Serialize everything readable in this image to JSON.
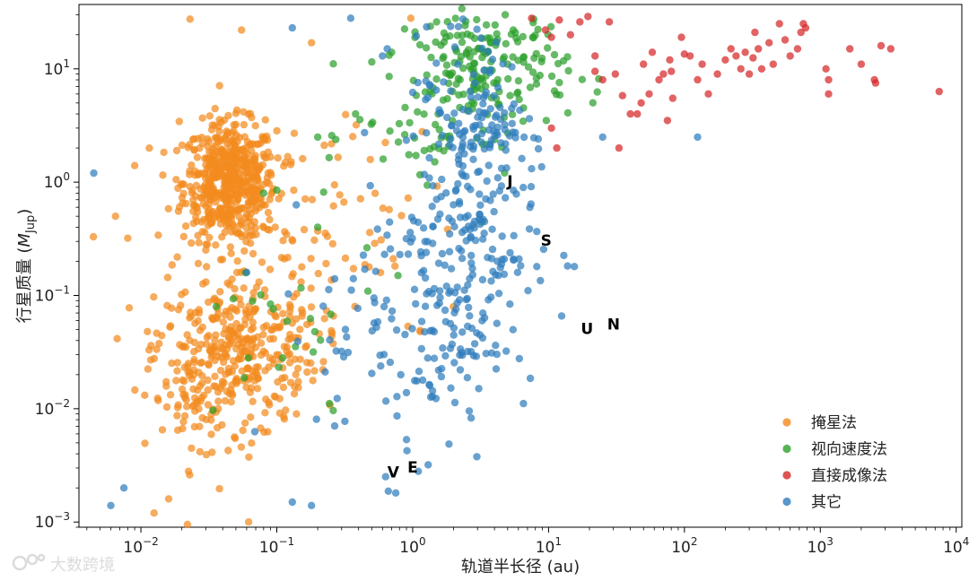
{
  "chart_data": {
    "type": "scatter",
    "xlabel": "轨道半长径 (au)",
    "ylabel": "行星质量 (M_Jup)",
    "xscale": "log",
    "yscale": "log",
    "xlim": [
      0.0035,
      11000
    ],
    "ylim": [
      0.0009,
      37
    ],
    "x_ticks": [
      {
        "value": 0.01,
        "base": "10",
        "exp": "−2"
      },
      {
        "value": 0.1,
        "base": "10",
        "exp": "−1"
      },
      {
        "value": 1,
        "base": "10",
        "exp": "0"
      },
      {
        "value": 10,
        "base": "10",
        "exp": "1"
      },
      {
        "value": 100,
        "base": "10",
        "exp": "2"
      },
      {
        "value": 1000,
        "base": "10",
        "exp": "3"
      },
      {
        "value": 10000,
        "base": "10",
        "exp": "4"
      }
    ],
    "y_ticks": [
      {
        "value": 0.001,
        "base": "10",
        "exp": "−3"
      },
      {
        "value": 0.01,
        "base": "10",
        "exp": "−2"
      },
      {
        "value": 0.1,
        "base": "10",
        "exp": "−1"
      },
      {
        "value": 1,
        "base": "10",
        "exp": "0"
      },
      {
        "value": 10,
        "base": "10",
        "exp": "1"
      }
    ],
    "legend_position": "lower-right",
    "series": [
      {
        "name": "掩星法",
        "color": "#f28a1e",
        "clusters": [
          {
            "x": 0.045,
            "y": 1.0,
            "sx": 0.17,
            "sy": 0.26,
            "n": 560
          },
          {
            "x": 0.05,
            "y": 0.035,
            "sx": 0.3,
            "sy": 0.32,
            "n": 300
          },
          {
            "x": 0.03,
            "y": 0.012,
            "sx": 0.2,
            "sy": 0.3,
            "n": 90
          },
          {
            "x": 0.1,
            "y": 0.2,
            "sx": 0.45,
            "sy": 0.55,
            "n": 70
          },
          {
            "x": 0.4,
            "y": 0.4,
            "sx": 0.4,
            "sy": 0.6,
            "n": 40
          }
        ],
        "points": [
          [
            0.023,
            27.5
          ],
          [
            0.055,
            22
          ],
          [
            0.18,
            17
          ],
          [
            0.97,
            28
          ],
          [
            0.009,
            1.4
          ],
          [
            0.0065,
            0.5
          ],
          [
            0.008,
            0.32
          ],
          [
            0.0125,
            0.0012
          ],
          [
            0.022,
            0.00095
          ],
          [
            0.062,
            0.001
          ],
          [
            0.016,
            0.0016
          ]
        ]
      },
      {
        "name": "视向速度法",
        "color": "#2ca02c",
        "clusters": [
          {
            "x": 3.5,
            "y": 10,
            "sx": 0.3,
            "sy": 0.28,
            "n": 190
          },
          {
            "x": 1.5,
            "y": 2.5,
            "sx": 0.3,
            "sy": 0.3,
            "n": 40
          },
          {
            "x": 0.1,
            "y": 0.04,
            "sx": 0.4,
            "sy": 0.45,
            "n": 25
          }
        ],
        "points": [
          [
            0.08,
            0.8
          ],
          [
            0.1,
            0.85
          ],
          [
            0.2,
            2.5
          ],
          [
            0.2,
            0.4
          ],
          [
            0.38,
            4.0
          ],
          [
            0.5,
            11.5
          ],
          [
            0.7,
            14
          ],
          [
            0.78,
            0.15
          ],
          [
            1.5,
            26
          ],
          [
            4.8,
            30
          ],
          [
            5.5,
            22
          ]
        ]
      },
      {
        "name": "直接成像法",
        "color": "#d62728",
        "points": [
          [
            7.5,
            28
          ],
          [
            9.5,
            22
          ],
          [
            10.5,
            19
          ],
          [
            12,
            27
          ],
          [
            14.5,
            20
          ],
          [
            17,
            26
          ],
          [
            19.5,
            29
          ],
          [
            22,
            9.5
          ],
          [
            22,
            13
          ],
          [
            25,
            8
          ],
          [
            28,
            26
          ],
          [
            31,
            9
          ],
          [
            33,
            2.0
          ],
          [
            35,
            5.8
          ],
          [
            40,
            4.0
          ],
          [
            45,
            4.0
          ],
          [
            48,
            5.0
          ],
          [
            50,
            11
          ],
          [
            55,
            6.0
          ],
          [
            58,
            14
          ],
          [
            65,
            8
          ],
          [
            70,
            9
          ],
          [
            75,
            3.5
          ],
          [
            78,
            12
          ],
          [
            80,
            9.5
          ],
          [
            82,
            5.5
          ],
          [
            95,
            19
          ],
          [
            100,
            13.5
          ],
          [
            110,
            13
          ],
          [
            125,
            8
          ],
          [
            135,
            11
          ],
          [
            150,
            6
          ],
          [
            175,
            9
          ],
          [
            200,
            12
          ],
          [
            220,
            15
          ],
          [
            240,
            13
          ],
          [
            260,
            10
          ],
          [
            280,
            14
          ],
          [
            300,
            9
          ],
          [
            320,
            12.5
          ],
          [
            330,
            21
          ],
          [
            350,
            15
          ],
          [
            370,
            10
          ],
          [
            420,
            17
          ],
          [
            450,
            11
          ],
          [
            500,
            25
          ],
          [
            550,
            18
          ],
          [
            600,
            13
          ],
          [
            680,
            15
          ],
          [
            720,
            21
          ],
          [
            750,
            25
          ],
          [
            780,
            23
          ],
          [
            1100,
            10
          ],
          [
            1150,
            8
          ],
          [
            1150,
            6
          ],
          [
            1650,
            15
          ],
          [
            2000,
            11
          ],
          [
            2500,
            8
          ],
          [
            2550,
            7.5
          ],
          [
            2800,
            16
          ],
          [
            3300,
            15
          ],
          [
            7500,
            6.3
          ],
          [
            10.5,
            3.0
          ],
          [
            11.5,
            2.0
          ]
        ]
      },
      {
        "name": "其它",
        "color": "#2f7dbd",
        "clusters": [
          {
            "x": 2.5,
            "y": 0.35,
            "sx": 0.25,
            "sy": 0.7,
            "n": 230
          },
          {
            "x": 3.2,
            "y": 2.8,
            "sx": 0.12,
            "sy": 0.12,
            "n": 45
          },
          {
            "x": 1.0,
            "y": 0.05,
            "sx": 0.35,
            "sy": 0.6,
            "n": 110
          },
          {
            "x": 2.2,
            "y": 10,
            "sx": 0.3,
            "sy": 0.35,
            "n": 35
          }
        ],
        "points": [
          [
            0.0045,
            1.2
          ],
          [
            0.006,
            0.0014
          ],
          [
            0.0075,
            0.002
          ],
          [
            0.13,
            0.0015
          ],
          [
            0.18,
            0.0014
          ],
          [
            0.13,
            23
          ],
          [
            0.35,
            28
          ],
          [
            0.6,
            13
          ],
          [
            0.65,
            15
          ],
          [
            4.2,
            0.2
          ],
          [
            8.2,
            0.18
          ],
          [
            15.5,
            0.18
          ],
          [
            25,
            2.5
          ],
          [
            125,
            2.5
          ],
          [
            1.1,
            0.0028
          ],
          [
            1.3,
            0.0032
          ],
          [
            0.06,
            0.16
          ],
          [
            0.32,
            0.05
          ]
        ]
      }
    ],
    "annotations": [
      {
        "text": "J",
        "x": 5.2,
        "y": 1.0
      },
      {
        "text": "S",
        "x": 9.6,
        "y": 0.3
      },
      {
        "text": "U",
        "x": 19.2,
        "y": 0.05
      },
      {
        "text": "N",
        "x": 30.1,
        "y": 0.055
      },
      {
        "text": "V",
        "x": 0.72,
        "y": 0.0027
      },
      {
        "text": "E",
        "x": 1.0,
        "y": 0.003
      }
    ]
  },
  "watermark": {
    "text": "大数跨境"
  }
}
